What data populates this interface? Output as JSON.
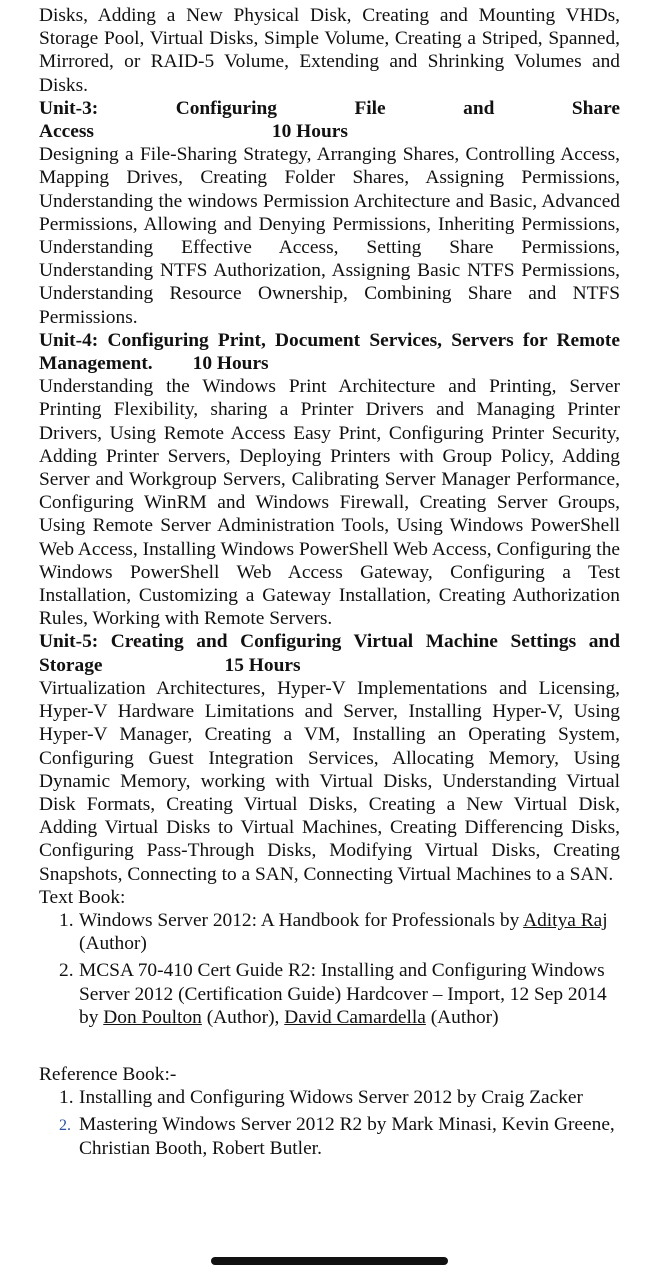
{
  "unit2_tail": "Disks, Adding a New Physical Disk, Creating and Mounting VHDs, Storage Pool, Virtual Disks, Simple Volume, Creating a Striped, Spanned, Mirrored, or RAID-5 Volume, Extending and Shrinking Volumes and Disks.",
  "unit3": {
    "words": [
      "Unit-3:",
      "Configuring",
      "File",
      "and",
      "Share"
    ],
    "line2": "Access",
    "hours": "10 Hours",
    "body": "Designing a File-Sharing Strategy, Arranging Shares, Controlling Access, Mapping Drives, Creating Folder Shares, Assigning Permissions, Understanding the windows Permission Architecture and Basic, Advanced Permissions, Allowing and Denying Permissions, Inheriting Permissions, Understanding Effective Access, Setting Share Permissions, Understanding NTFS Authorization, Assigning Basic NTFS Permissions, Understanding Resource Ownership, Combining Share and NTFS Permissions."
  },
  "unit4": {
    "title": "Unit-4: Configuring Print, Document Services, Servers for Remote Management.",
    "hours": "10 Hours",
    "body": "Understanding the Windows Print Architecture and Printing, Server Printing Flexibility, sharing a Printer Drivers and Managing Printer Drivers, Using Remote Access Easy Print, Configuring Printer Security, Adding Printer Servers, Deploying Printers with Group Policy, Adding Server and Workgroup Servers, Calibrating Server Manager Performance, Configuring WinRM and Windows Firewall, Creating Server Groups, Using Remote Server Administration Tools, Using Windows PowerShell Web Access, Installing Windows PowerShell Web Access, Configuring the Windows PowerShell Web Access Gateway, Configuring a Test Installation, Customizing a Gateway Installation, Creating Authorization Rules, Working with Remote Servers."
  },
  "unit5": {
    "title": "Unit-5: Creating and Configuring Virtual Machine Settings and Storage",
    "hours": "15 Hours",
    "body": "Virtualization Architectures, Hyper-V Implementations and Licensing, Hyper-V Hardware Limitations and Server, Installing Hyper-V, Using Hyper-V Manager, Creating a VM, Installing an Operating System, Configuring Guest Integration Services, Allocating Memory, Using Dynamic Memory, working with Virtual Disks, Understanding Virtual Disk Formats, Creating Virtual Disks, Creating a New Virtual Disk, Adding Virtual Disks to Virtual Machines, Creating Differencing Disks, Configuring Pass-Through Disks, Modifying Virtual Disks, Creating Snapshots, Connecting to a SAN, Connecting Virtual Machines to a SAN."
  },
  "text_book": {
    "label": "Text Book:",
    "items": [
      {
        "num": "1.",
        "before": "Windows Server 2012: A Handbook for Professionals by ",
        "link1": "Aditya Raj",
        "after": " (Author)"
      },
      {
        "num": "2.",
        "before": "MCSA 70-410 Cert Guide R2: Installing and Configuring Windows Server 2012 (Certification Guide) Hardcover – Import, 12 Sep 2014 by ",
        "link1": "Don Poulton",
        "mid": " (Author), ",
        "link2": "David Camardella",
        "after": " (Author)"
      }
    ]
  },
  "reference_book": {
    "label": "Reference Book:-",
    "items": [
      {
        "num": "1.",
        "text": "Installing and Configuring Widows Server 2012 by Craig Zacker"
      },
      {
        "num": "2.",
        "text": "Mastering Windows Server 2012 R2 by Mark Minasi, Kevin Greene, Christian Booth, Robert Butler."
      }
    ]
  }
}
